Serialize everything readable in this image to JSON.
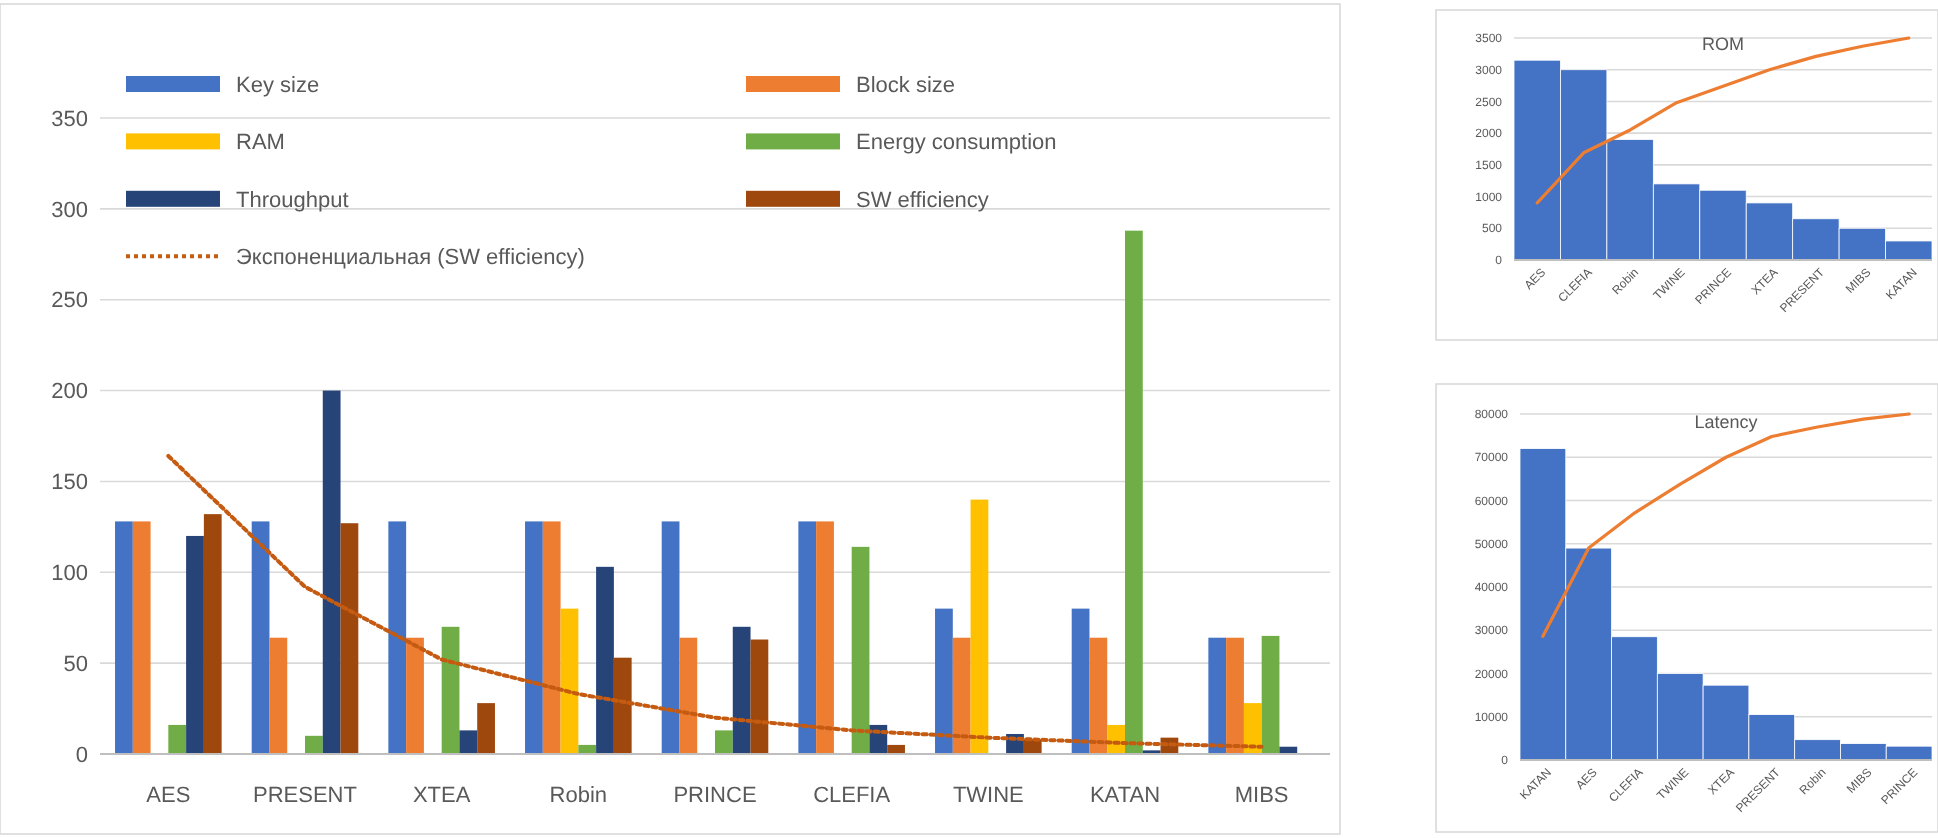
{
  "chart_data": [
    {
      "type": "bar",
      "categories": [
        "AES",
        "PRESENT",
        "XTEA",
        "Robin",
        "PRINCE",
        "CLEFIA",
        "TWINE",
        "KATAN",
        "MIBS"
      ],
      "series": [
        {
          "name": "Key size",
          "color": "#4472c4",
          "values": [
            128,
            128,
            128,
            128,
            128,
            128,
            80,
            80,
            64
          ]
        },
        {
          "name": "Block size",
          "color": "#ed7d31",
          "values": [
            128,
            64,
            64,
            128,
            64,
            128,
            64,
            64,
            64
          ]
        },
        {
          "name": "RAM",
          "color": "#ffc000",
          "values": [
            null,
            null,
            null,
            80,
            null,
            null,
            140,
            16,
            28
          ]
        },
        {
          "name": "Energy consumption",
          "color": "#70ad47",
          "values": [
            16,
            10,
            70,
            5,
            13,
            114,
            null,
            288,
            65
          ]
        },
        {
          "name": "Throughput",
          "color": "#264478",
          "values": [
            120,
            200,
            13,
            103,
            70,
            16,
            11,
            2,
            4
          ]
        },
        {
          "name": "SW efficiency",
          "color": "#9e480e",
          "values": [
            132,
            127,
            28,
            53,
            63,
            5,
            8,
            9,
            null
          ]
        },
        {
          "name": "Экспоненциальная (SW efficiency)",
          "type": "line",
          "line_style": "dotted",
          "color": "#c55a11",
          "values": [
            164,
            92,
            52,
            33,
            20,
            13,
            9,
            6,
            4
          ]
        }
      ],
      "ylim": [
        0,
        350
      ],
      "yticks": [
        0,
        50,
        100,
        150,
        200,
        250,
        300,
        350
      ],
      "grid": "y",
      "legend": "top"
    },
    {
      "type": "bar",
      "title": "ROM",
      "categories": [
        "AES",
        "CLEFIA",
        "Robin",
        "TWINE",
        "PRINCE",
        "XTEA",
        "PRESENT",
        "MIBS",
        "KATAN"
      ],
      "series": [
        {
          "color": "#4472c4",
          "values": [
            3150,
            3000,
            1900,
            1200,
            1100,
            900,
            650,
            500,
            300
          ]
        },
        {
          "type": "line",
          "color": "#ed7d31",
          "values": [
            900,
            1690,
            2050,
            2480,
            2740,
            3000,
            3210,
            3370,
            3500
          ]
        }
      ],
      "ylim": [
        0,
        3500
      ],
      "yticks": [
        0,
        500,
        1000,
        1500,
        2000,
        2500,
        3000,
        3500
      ],
      "grid": "y"
    },
    {
      "type": "bar",
      "title": "Latency",
      "categories": [
        "KATAN",
        "AES",
        "CLEFIA",
        "TWINE",
        "XTEA",
        "PRESENT",
        "Robin",
        "MIBS",
        "PRINCE"
      ],
      "series": [
        {
          "color": "#4472c4",
          "values": [
            72000,
            49000,
            28500,
            20000,
            17300,
            10500,
            4700,
            3800,
            3200
          ]
        },
        {
          "type": "line",
          "color": "#ed7d31",
          "values": [
            28600,
            49000,
            57100,
            63800,
            70000,
            74800,
            77000,
            78800,
            80000
          ]
        }
      ],
      "ylim": [
        0,
        80000
      ],
      "yticks": [
        0,
        10000,
        20000,
        30000,
        40000,
        50000,
        60000,
        70000,
        80000
      ],
      "grid": "y"
    }
  ]
}
